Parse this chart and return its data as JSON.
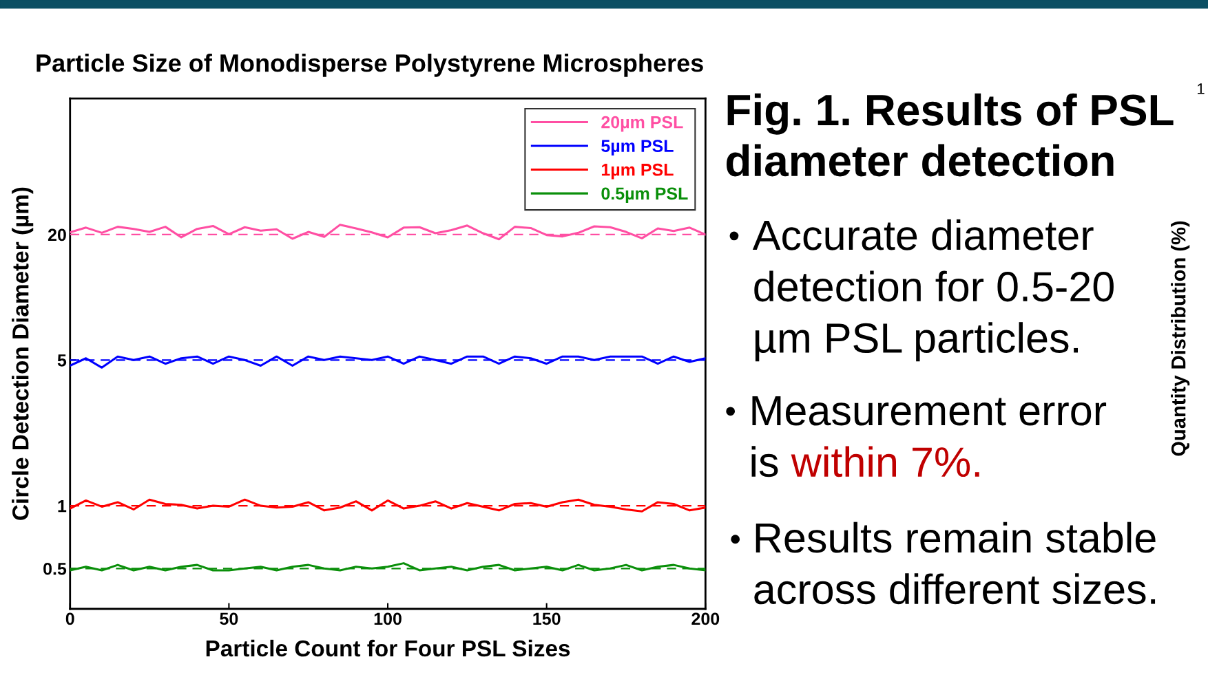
{
  "chart_data": {
    "type": "line",
    "title": "Particle Size of Monodisperse Polystyrene Microspheres",
    "xlabel": "Particle Count for Four PSL Sizes",
    "ylabel": "Circle Detection Diameter (µm)",
    "log": true,
    "xlim": [
      0,
      200
    ],
    "xticks": [
      0,
      50,
      100,
      150,
      200
    ],
    "ylim": [
      0.32,
      90
    ],
    "yticks": [
      0.5,
      1,
      5,
      20
    ],
    "grid": false,
    "legend": "top right",
    "marker": "none",
    "line_style": "solid",
    "x": [
      0,
      5,
      10,
      15,
      20,
      25,
      30,
      35,
      40,
      45,
      50,
      55,
      60,
      65,
      70,
      75,
      80,
      85,
      90,
      95,
      100,
      105,
      110,
      115,
      120,
      125,
      130,
      135,
      140,
      145,
      150,
      155,
      160,
      165,
      170,
      175,
      180,
      185,
      190,
      195,
      200
    ],
    "series": [
      {
        "name": "20µm PSL",
        "color": "#ff4fa3",
        "values": [
          20.5,
          21.6,
          20.4,
          21.8,
          21.3,
          20.6,
          21.8,
          19.4,
          21.3,
          22.0,
          20.1,
          21.7,
          20.9,
          21.2,
          19.1,
          20.6,
          19.5,
          22.3,
          21.4,
          20.5,
          19.4,
          21.6,
          21.7,
          20.3,
          21.0,
          22.1,
          20.3,
          19.0,
          21.8,
          21.5,
          19.9,
          19.6,
          20.4,
          21.9,
          21.7,
          20.6,
          19.2,
          21.4,
          20.8,
          21.6,
          20.0
        ]
      },
      {
        "name": "5µm PSL",
        "color": "#0000ff",
        "values": [
          4.7,
          5.1,
          4.6,
          5.2,
          5.0,
          5.2,
          4.8,
          5.1,
          5.2,
          4.8,
          5.2,
          5.0,
          4.7,
          5.2,
          4.7,
          5.2,
          5.0,
          5.2,
          5.1,
          5.0,
          5.2,
          4.8,
          5.2,
          5.0,
          4.8,
          5.2,
          5.2,
          4.8,
          5.2,
          5.1,
          4.8,
          5.2,
          5.2,
          5.0,
          5.2,
          5.2,
          5.2,
          4.8,
          5.2,
          4.9,
          5.1
        ]
      },
      {
        "name": "1µm PSL",
        "color": "#ff0000",
        "values": [
          0.97,
          1.06,
          0.99,
          1.04,
          0.96,
          1.07,
          1.02,
          1.01,
          0.97,
          1.0,
          0.99,
          1.07,
          1.0,
          0.98,
          0.99,
          1.04,
          0.95,
          0.98,
          1.05,
          0.95,
          1.06,
          0.97,
          1.0,
          1.05,
          0.97,
          1.03,
          0.99,
          0.95,
          1.02,
          1.03,
          0.99,
          1.04,
          1.07,
          1.01,
          0.99,
          0.96,
          0.94,
          1.04,
          1.02,
          0.95,
          0.98
        ]
      },
      {
        "name": "0.5µm PSL",
        "color": "#0a8f0a",
        "values": [
          0.49,
          0.51,
          0.49,
          0.52,
          0.49,
          0.51,
          0.49,
          0.51,
          0.52,
          0.49,
          0.49,
          0.5,
          0.51,
          0.49,
          0.51,
          0.52,
          0.5,
          0.49,
          0.51,
          0.5,
          0.51,
          0.53,
          0.49,
          0.5,
          0.51,
          0.49,
          0.51,
          0.52,
          0.49,
          0.5,
          0.51,
          0.49,
          0.52,
          0.49,
          0.5,
          0.52,
          0.49,
          0.51,
          0.52,
          0.5,
          0.49
        ]
      }
    ],
    "ref_lines": [
      {
        "axis": "y",
        "value": 20,
        "color": "#ff4fa3",
        "line_style": "dashed"
      },
      {
        "axis": "y",
        "value": 5,
        "color": "#0000ff",
        "line_style": "dashed"
      },
      {
        "axis": "y",
        "value": 1,
        "color": "#ff0000",
        "line_style": "dashed"
      },
      {
        "axis": "y",
        "value": 0.5,
        "color": "#0a8f0a",
        "line_style": "dashed"
      }
    ],
    "annotations": [
      "Fig. 1. Results of PSL\ndiameter detection",
      "•",
      "Accurate diameter\ndetection for 0.5-20\nµm PSL particles.",
      "•",
      "Measurement error\nis",
      "within 7%.",
      "•",
      "Results remain stable\nacross different sizes.",
      "Quantity Distribution (%)",
      "1"
    ]
  }
}
